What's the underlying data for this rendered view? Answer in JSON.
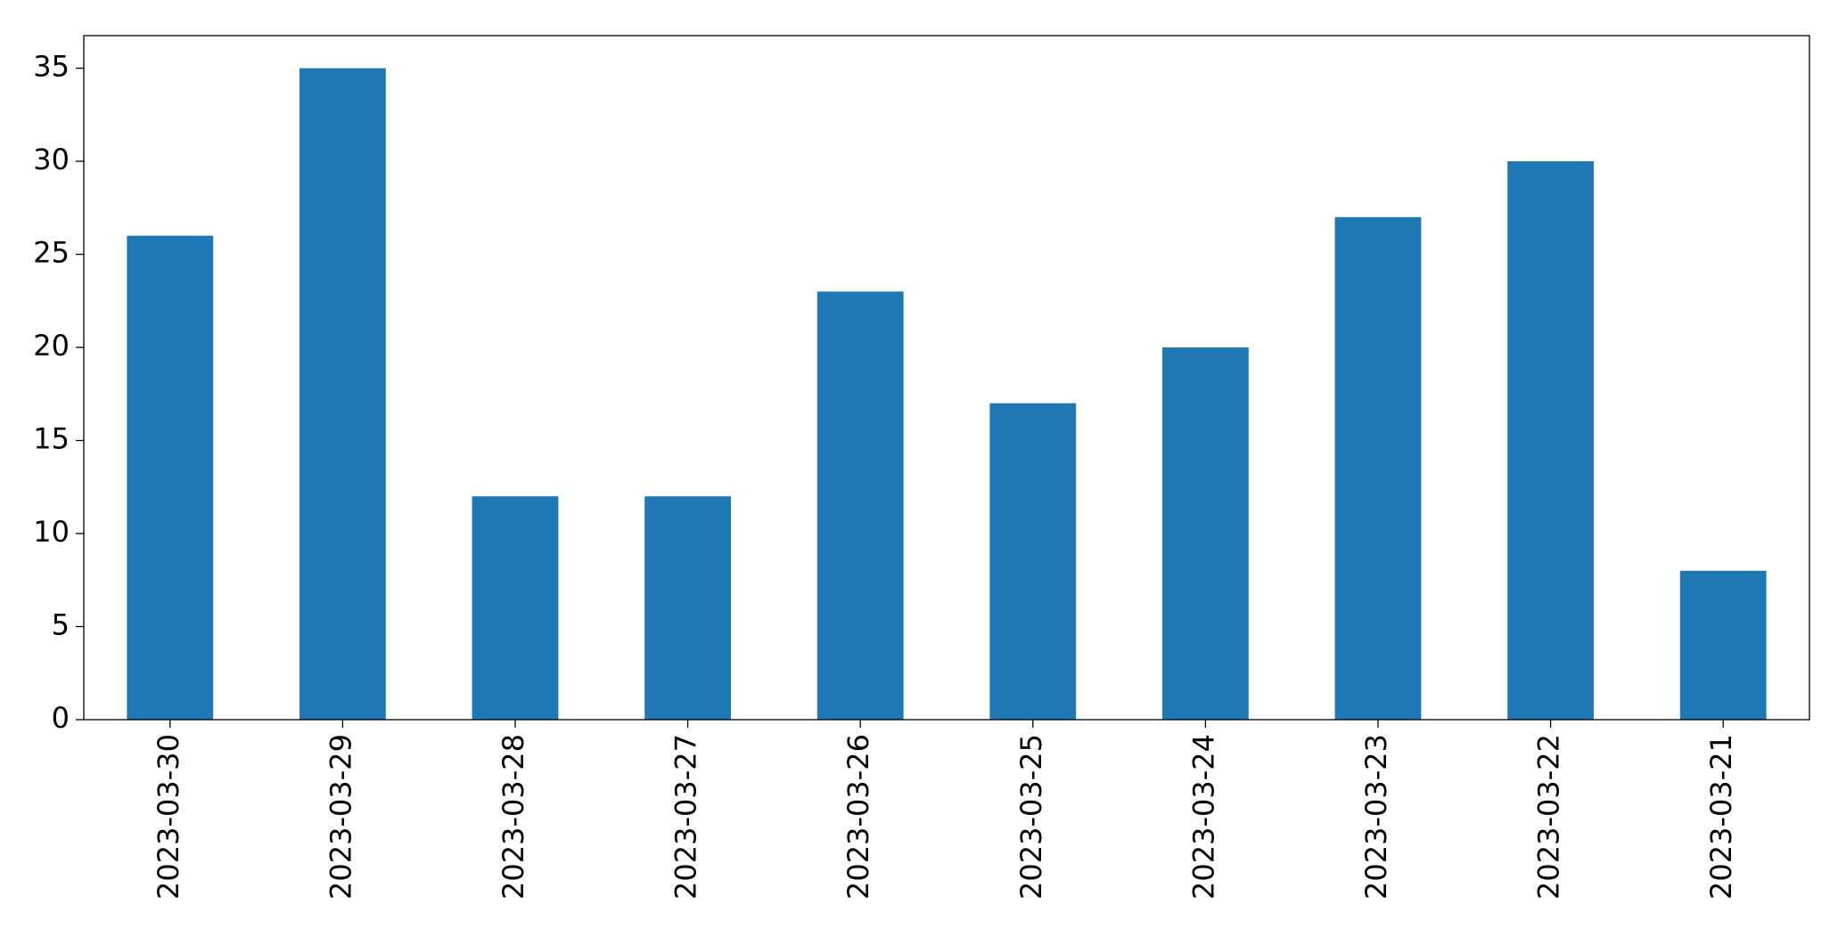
{
  "chart_data": {
    "type": "bar",
    "categories": [
      "2023-03-30",
      "2023-03-29",
      "2023-03-28",
      "2023-03-27",
      "2023-03-26",
      "2023-03-25",
      "2023-03-24",
      "2023-03-23",
      "2023-03-22",
      "2023-03-21"
    ],
    "values": [
      26,
      35,
      12,
      12,
      23,
      17,
      20,
      27,
      30,
      8
    ],
    "color": "#1f77b4",
    "ylim": [
      0,
      36.75
    ],
    "yticks": [
      0,
      5,
      10,
      15,
      20,
      25,
      30,
      35
    ],
    "grid": false
  }
}
